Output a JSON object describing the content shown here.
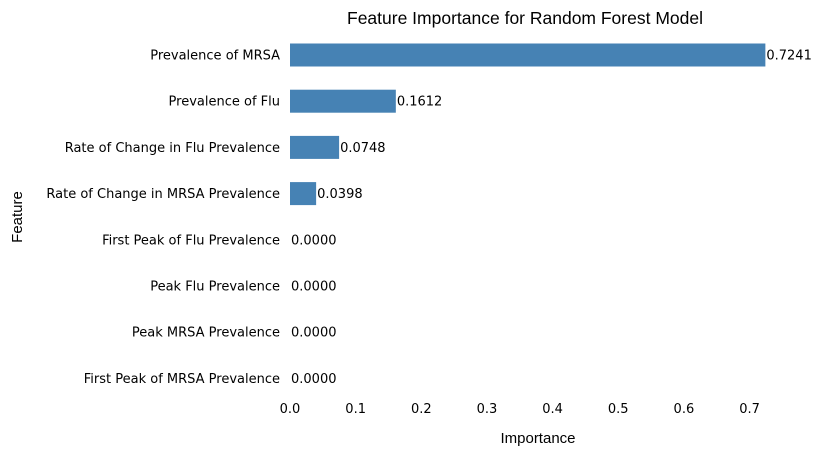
{
  "chart_data": {
    "type": "bar",
    "orientation": "horizontal",
    "title": "Feature Importance for Random Forest Model",
    "xlabel": "Importance",
    "ylabel": "Feature",
    "categories": [
      "Prevalence of MRSA",
      "Prevalence of Flu",
      "Rate of Change in Flu Prevalence",
      "Rate of Change in MRSA Prevalence",
      "First Peak of Flu Prevalence",
      "Peak Flu Prevalence",
      "Peak MRSA Prevalence",
      "First Peak of MRSA Prevalence"
    ],
    "values": [
      0.7241,
      0.1612,
      0.0748,
      0.0398,
      0.0,
      0.0,
      0.0,
      0.0
    ],
    "data_labels": [
      "0.7241",
      "0.1612",
      "0.0748",
      "0.0398",
      "0.0000",
      "0.0000",
      "0.0000",
      "0.0000"
    ],
    "xticks": [
      0.0,
      0.1,
      0.2,
      0.3,
      0.4,
      0.5,
      0.6,
      0.7
    ],
    "xtick_labels": [
      "0.0",
      "0.1",
      "0.2",
      "0.3",
      "0.4",
      "0.5",
      "0.6",
      "0.7"
    ],
    "xlim": [
      0,
      0.7241
    ],
    "grid": false,
    "bar_color": "#4682b4"
  }
}
